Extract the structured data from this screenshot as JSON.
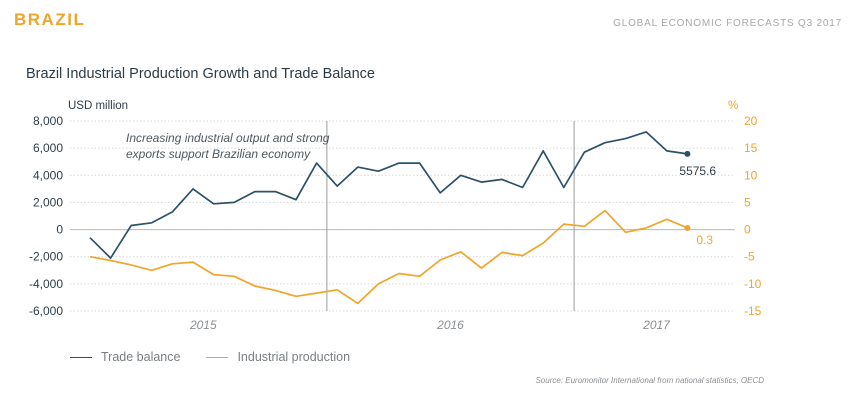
{
  "header": {
    "country": "BRAZIL",
    "report": "GLOBAL ECONOMIC FORECASTS Q3 2017"
  },
  "legend": {
    "trade": "Trade balance",
    "industrial": "Industrial production"
  },
  "source": "Source: Euromonitor International from national statistics, OECD",
  "colors": {
    "trade": "#2b5269",
    "industrial": "#f0a52a",
    "grid": "#d9dadb",
    "divider": "#9a9c9e"
  },
  "chart_data": {
    "type": "line",
    "title": "Brazil Industrial Production Growth and Trade Balance",
    "ylabel_left": "USD million",
    "ylabel_right": "%",
    "ylim_left": [
      -6000,
      8000
    ],
    "ylim_right": [
      -15,
      20
    ],
    "yticks_left": [
      "8,000",
      "6,000",
      "4,000",
      "2,000",
      "0",
      "-2,000",
      "-4,000",
      "-6,000"
    ],
    "yticks_right": [
      "20",
      "15",
      "10",
      "5",
      "0",
      "-5",
      "-10",
      "-15"
    ],
    "year_labels": [
      "2015",
      "2016",
      "2017"
    ],
    "annotation": [
      "Increasing industrial output and strong",
      "exports support Brazilian economy"
    ],
    "series": [
      {
        "name": "Trade balance",
        "axis": "left",
        "values": [
          -600,
          -2100,
          300,
          500,
          1300,
          3000,
          1900,
          2000,
          2800,
          2800,
          2200,
          4900,
          3200,
          4600,
          4300,
          4900,
          4900,
          2700,
          4000,
          3500,
          3700,
          3100,
          5800,
          3100,
          5700,
          6400,
          6700,
          7200,
          5800,
          5575.6
        ],
        "last_label": "5575.6"
      },
      {
        "name": "Industrial production",
        "axis": "right",
        "values": [
          -5,
          -5.7,
          -6.5,
          -7.5,
          -6.3,
          -6.0,
          -8.3,
          -8.6,
          -10.4,
          -11.2,
          -12.3,
          -11.7,
          -11.1,
          -13.6,
          -10.0,
          -8.1,
          -8.6,
          -5.6,
          -4.1,
          -7.1,
          -4.2,
          -4.8,
          -2.5,
          1.0,
          0.6,
          3.5,
          -0.5,
          0.3,
          1.9,
          0.3
        ],
        "last_label": "0.3"
      }
    ]
  }
}
